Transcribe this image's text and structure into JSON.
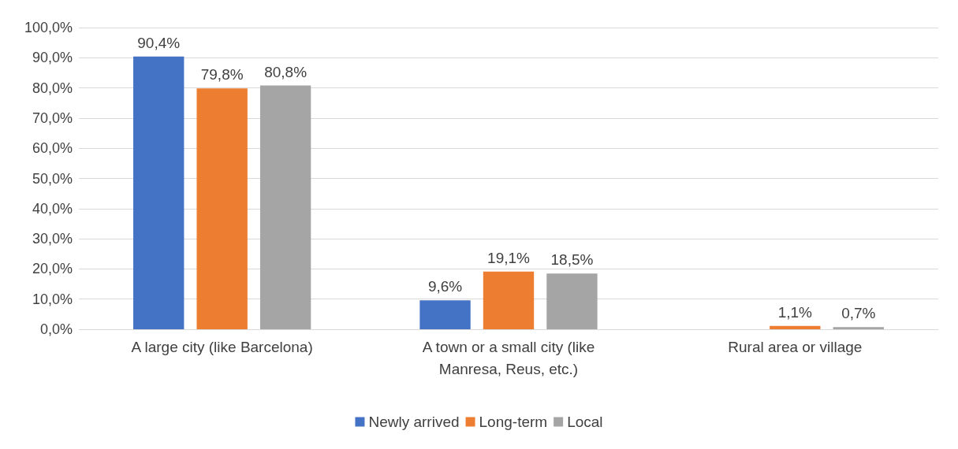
{
  "chart_data": {
    "type": "bar",
    "categories": [
      "A large city (like Barcelona)",
      "A town or a small city (like\nManresa, Reus, etc.)",
      "Rural area or village"
    ],
    "series": [
      {
        "name": "Newly arrived",
        "color": "#4472c4",
        "values": [
          90.4,
          9.6,
          0
        ],
        "value_labels": [
          "90,4%",
          "9,6%",
          null
        ]
      },
      {
        "name": "Long-term",
        "color": "#ed7d31",
        "values": [
          79.8,
          19.1,
          1.1
        ],
        "value_labels": [
          "79,8%",
          "19,1%",
          "1,1%"
        ]
      },
      {
        "name": "Local",
        "color": "#a5a5a5",
        "values": [
          80.8,
          18.5,
          0.7
        ],
        "value_labels": [
          "80,8%",
          "18,5%",
          "0,7%"
        ]
      }
    ],
    "ylim": [
      0,
      100
    ],
    "yticks": [
      {
        "value": 0,
        "label": "0,0%"
      },
      {
        "value": 10,
        "label": "10,0%"
      },
      {
        "value": 20,
        "label": "20,0%"
      },
      {
        "value": 30,
        "label": "30,0%"
      },
      {
        "value": 40,
        "label": "40,0%"
      },
      {
        "value": 50,
        "label": "50,0%"
      },
      {
        "value": 60,
        "label": "60,0%"
      },
      {
        "value": 70,
        "label": "70,0%"
      },
      {
        "value": 80,
        "label": "80,0%"
      },
      {
        "value": 90,
        "label": "90,0%"
      },
      {
        "value": 100,
        "label": "100,0%"
      }
    ],
    "grid": "y",
    "legend": "bottom"
  }
}
